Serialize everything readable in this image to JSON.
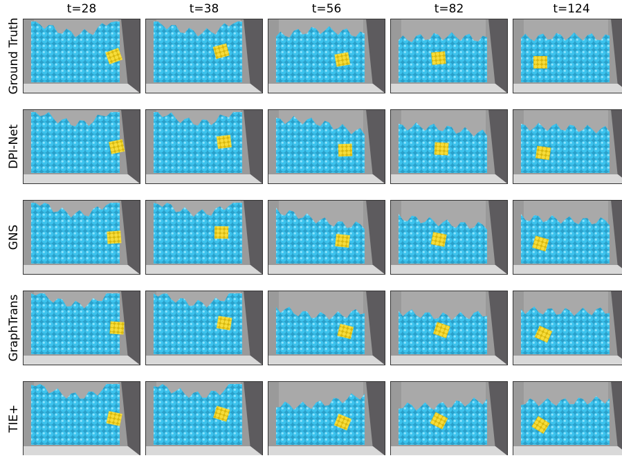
{
  "figure": {
    "columns": [
      "t=28",
      "t=38",
      "t=56",
      "t=82",
      "t=124"
    ],
    "rows": [
      "Ground Truth",
      "DPI-Net",
      "GNS",
      "GraphTrans",
      "TIE+"
    ]
  }
}
